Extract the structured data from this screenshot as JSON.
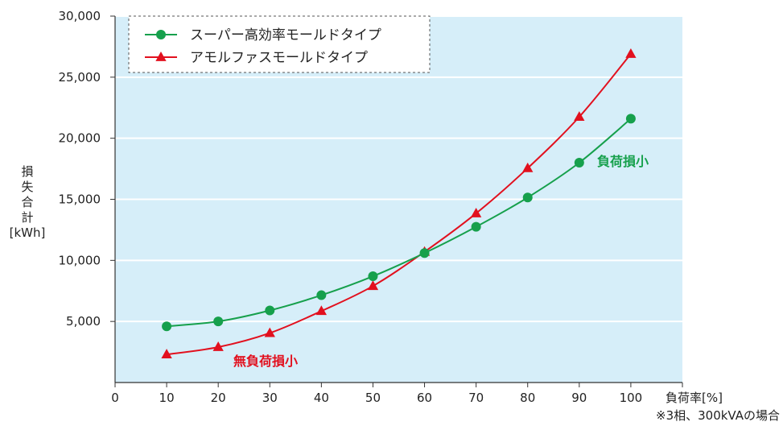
{
  "chart_data": {
    "type": "line",
    "x": [
      10,
      20,
      30,
      40,
      50,
      60,
      70,
      80,
      90,
      100
    ],
    "series": [
      {
        "name": "スーパー高効率モールドタイプ",
        "color": "#16a04c",
        "marker": "circle",
        "values": [
          4600,
          5000,
          5900,
          7150,
          8700,
          10600,
          12750,
          15150,
          18000,
          21600
        ]
      },
      {
        "name": "アモルファスモールドタイプ",
        "color": "#e2101e",
        "marker": "triangle",
        "values": [
          2300,
          2900,
          4050,
          5850,
          7900,
          10700,
          13850,
          17550,
          21750,
          26900
        ]
      }
    ],
    "xlim": [
      0,
      110
    ],
    "ylim": [
      0,
      30000
    ],
    "x_ticks": [
      "0",
      "10",
      "20",
      "30",
      "40",
      "50",
      "60",
      "70",
      "80",
      "90",
      "100"
    ],
    "y_ticks": [
      "5,000",
      "10,000",
      "15,000",
      "20,000",
      "25,000",
      "30,000"
    ],
    "y_tick_values": [
      5000,
      10000,
      15000,
      20000,
      25000,
      30000
    ],
    "xlabel": "負荷率[%]",
    "ylabel_lines": [
      "損",
      "失",
      "合",
      "計",
      "[kWh]"
    ],
    "annotations": {
      "load_loss": "負荷損小",
      "no_load_loss": "無負荷損小"
    },
    "note": "※3相、300kVAの場合",
    "grid": true,
    "legend_position": "top-left",
    "plot_background": "#d6eef9"
  }
}
